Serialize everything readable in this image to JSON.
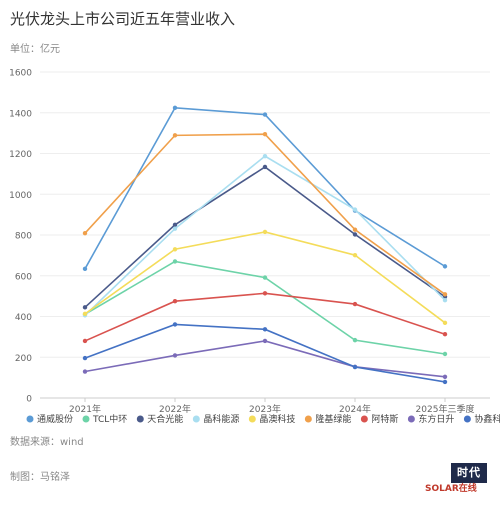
{
  "header": {
    "title": "光伏龙头上市公司近五年营业收入",
    "unit": "单位：亿元"
  },
  "footer": {
    "source": "数据来源：wind",
    "author": "制图：马铭泽"
  },
  "logo": {
    "mark": "时代",
    "text": "SOLAR在线"
  },
  "chart_data": {
    "type": "line",
    "title": "光伏龙头上市公司近五年营业收入",
    "xlabel": "",
    "ylabel": "",
    "ylim": [
      0,
      1600
    ],
    "yticks": [
      0,
      200,
      400,
      600,
      800,
      1000,
      1200,
      1400,
      1600
    ],
    "grid": true,
    "legend_position": "bottom",
    "categories": [
      "2021年",
      "2022年",
      "2023年",
      "2024年",
      "2025年三季度"
    ],
    "series": [
      {
        "name": "通威股份",
        "color": "#5b9bd5",
        "values": [
          634,
          1424,
          1391,
          920,
          646
        ]
      },
      {
        "name": "TCL中环",
        "color": "#6dd3a8",
        "values": [
          411,
          670,
          591,
          284,
          216
        ]
      },
      {
        "name": "天合光能",
        "color": "#4a5a8a",
        "values": [
          445,
          850,
          1134,
          803,
          497
        ]
      },
      {
        "name": "晶科能源",
        "color": "#a9def0",
        "values": [
          406,
          831,
          1187,
          925,
          480
        ]
      },
      {
        "name": "晶澳科技",
        "color": "#f4dc5a",
        "values": [
          413,
          730,
          815,
          701,
          369
        ]
      },
      {
        "name": "隆基绿能",
        "color": "#f0a04b",
        "values": [
          809,
          1289,
          1295,
          826,
          509
        ]
      },
      {
        "name": "阿特斯",
        "color": "#d9534f",
        "values": [
          280,
          475,
          514,
          461,
          313
        ]
      },
      {
        "name": "东方日升",
        "color": "#7b6bb8",
        "values": [
          130,
          209,
          280,
          153,
          104
        ]
      },
      {
        "name": "协鑫科技",
        "color": "#4472c4",
        "values": [
          196,
          361,
          337,
          152,
          79
        ]
      }
    ]
  }
}
